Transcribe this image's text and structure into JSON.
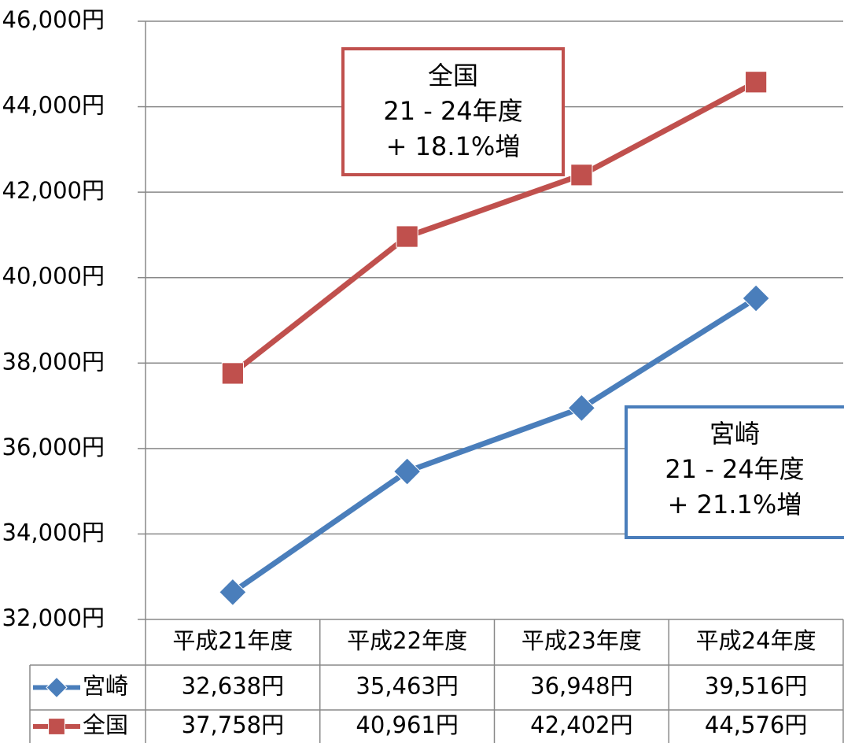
{
  "chart_data": {
    "type": "line",
    "categories": [
      "平成21年度",
      "平成22年度",
      "平成23年度",
      "平成24年度"
    ],
    "series": [
      {
        "name": "宮崎",
        "color": "#4a7ebb",
        "marker": "diamond",
        "values": [
          32638,
          35463,
          36948,
          39516
        ],
        "value_labels": [
          "32,638円",
          "35,463円",
          "36,948円",
          "39,516円"
        ]
      },
      {
        "name": "全国",
        "color": "#c0504d",
        "marker": "square",
        "values": [
          37758,
          40961,
          42402,
          44576
        ],
        "value_labels": [
          "37,758円",
          "40,961円",
          "42,402円",
          "44,576円"
        ]
      }
    ],
    "ylim": [
      32000,
      46000
    ],
    "yticks": [
      {
        "value": 32000,
        "label": "32,000円"
      },
      {
        "value": 34000,
        "label": "34,000円"
      },
      {
        "value": 36000,
        "label": "36,000円"
      },
      {
        "value": 38000,
        "label": "38,000円"
      },
      {
        "value": 40000,
        "label": "40,000円"
      },
      {
        "value": 42000,
        "label": "42,000円"
      },
      {
        "value": 44000,
        "label": "44,000円"
      },
      {
        "value": 46000,
        "label": "46,000円"
      }
    ],
    "grid": true,
    "annotations": [
      {
        "color": "#c0504d",
        "lines": [
          "全国",
          "21 - 24年度",
          "+ 18.1%増"
        ]
      },
      {
        "color": "#4a7ebb",
        "lines": [
          "宮崎",
          "21 - 24年度",
          "+ 21.1%増"
        ]
      }
    ]
  }
}
